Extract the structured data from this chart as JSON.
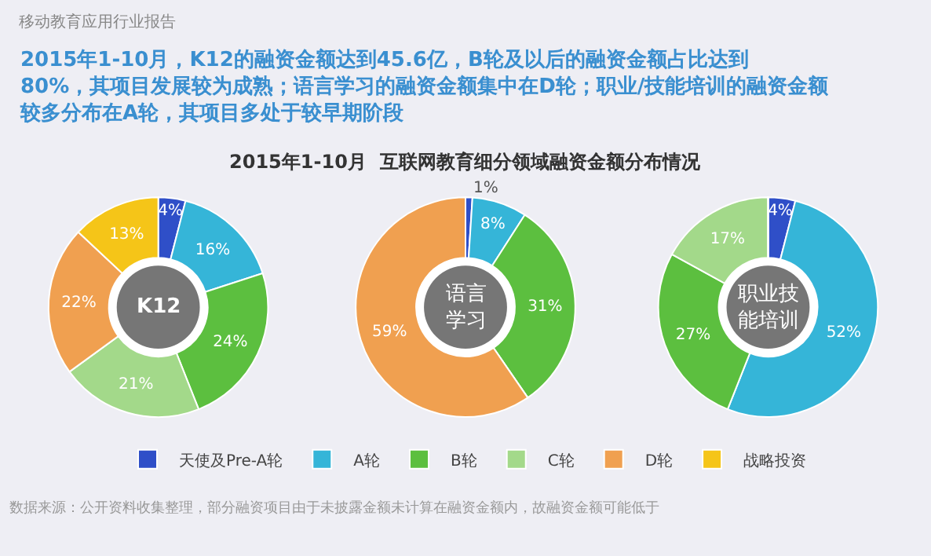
{
  "chart_data": [
    {
      "type": "other",
      "title": "移动教育应用行业报告",
      "subtitle": "2015年1-10月，K12的融资金额达到45.6亿，B轮及以后的融资金额占比达到80%，其项目发展较为成熟；语言学习的融资金额集中在D轮；职业/技能培训的融资金额较多分布在A轮，其项目多处于较早期阶段",
      "annotations": [
        "2015年1-10月  互联网教育细分领域融资金额分布情况",
        "数据来源：公开资料收集整理，部分融资项目由于未披露金额未计算在融资金额内，故融资金额可能低于"
      ]
    },
    {
      "type": "donut",
      "title": "K12",
      "legend": "bottom",
      "categories": [
        "天使及Pre-A轮",
        "A轮",
        "B轮",
        "C轮",
        "D轮",
        "战略投资"
      ],
      "values": [
        4,
        16,
        24,
        21,
        22,
        13
      ],
      "value_labels": [
        "4%",
        "16%",
        "24%",
        "21%",
        "22%",
        "13%"
      ],
      "colors": [
        "#2f4fc8",
        "#35b5d8",
        "#5cbf3f",
        "#a3d98a",
        "#f0a050",
        "#f5c518"
      ]
    },
    {
      "type": "donut",
      "title": "语言学习",
      "categories": [
        null,
        null,
        null,
        null,
        null,
        null
      ],
      "values": [
        1,
        8,
        31,
        0,
        59,
        0
      ],
      "value_labels": [
        "1%",
        "8%",
        "31%",
        null,
        "59%",
        null
      ],
      "colors": [
        "#2f4fc8",
        "#35b5d8",
        "#5cbf3f",
        "#a3d98a",
        "#f0a050",
        "#f5c518"
      ]
    },
    {
      "type": "donut",
      "title": "职业技能培训",
      "categories": [
        null,
        null,
        null,
        null,
        null,
        null
      ],
      "values": [
        4,
        52,
        27,
        17,
        0,
        0
      ],
      "value_labels": [
        "4%",
        "52%",
        "27%",
        "17%",
        null,
        null
      ],
      "colors": [
        "#2f4fc8",
        "#35b5d8",
        "#5cbf3f",
        "#a3d98a",
        "#f0a050",
        "#f5c518"
      ]
    }
  ]
}
